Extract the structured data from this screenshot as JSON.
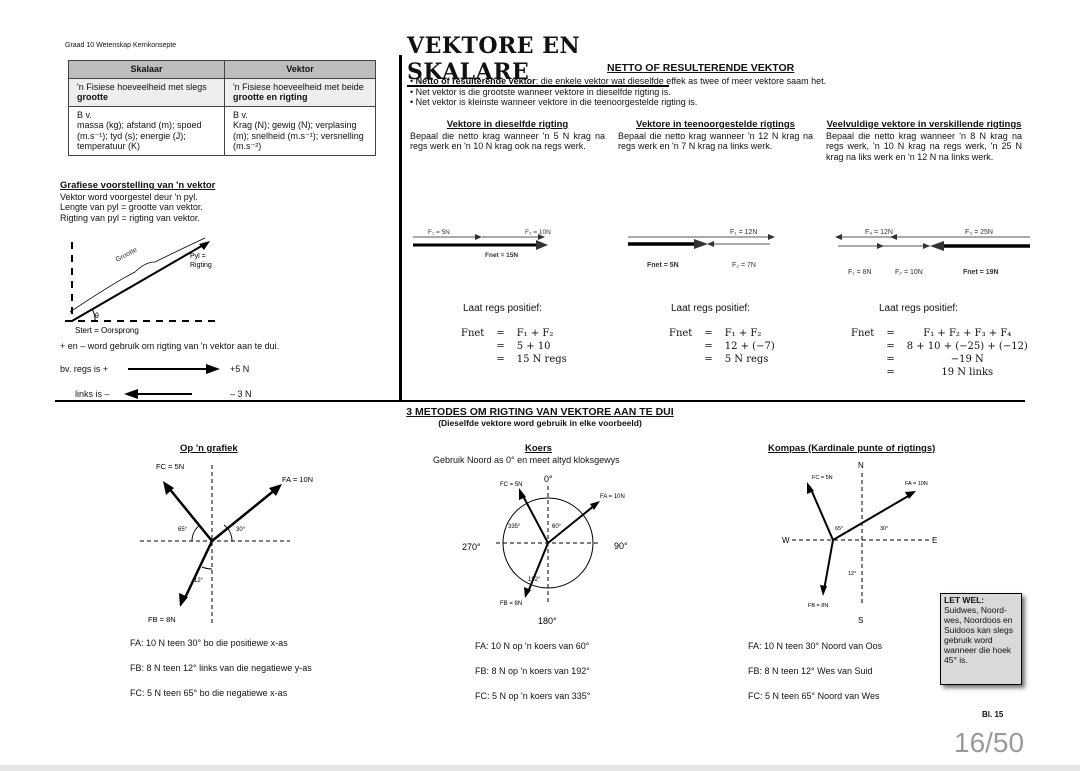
{
  "header": "Graad 10 Wetenskap Kernkonsepte",
  "title": "VEKTORE EN SKALARE",
  "table": {
    "headers": [
      "Skalaar",
      "Vektor"
    ],
    "row1": [
      "'n Fisiese hoeveelheid met slegs ",
      "grootte",
      "'n Fisiese hoeveelheid met beide ",
      "grootte en rigting"
    ],
    "row2_label": "B v.",
    "row2": [
      "massa (kg); afstand (m); spoed (m.s⁻¹); tyd (s); energie (J); temperatuur (K)",
      "Krag (N); gewig (N); verplasing (m); snelheid (m.s⁻¹); versnelling (m.s⁻²)"
    ]
  },
  "graphic": {
    "heading": "Grafiese voorstelling van 'n vektor",
    "lines": [
      "Vektor word voorgestel deur 'n pyl.",
      "Lengte van pyl = grootte van vektor.",
      "Rigting van pyl = rigting van vektor."
    ],
    "grootte": "Grootte",
    "pyl": "Pyl =",
    "rigting": "Rigting",
    "theta": "θ",
    "stert": "Stert = Oorsprong",
    "sign_note": "+ en – word gebruik om rigting van 'n vektor aan te dui.",
    "right_label": "bv. regs is +",
    "right_value": "+5 N",
    "left_label": "links is –",
    "left_value": "– 3 N"
  },
  "netto": {
    "heading": "NETTO OF RESULTERENDE VEKTOR",
    "b1_bold": "Netto of resulterende vektor",
    "b1": ": die enkele vektor wat dieselfde effek as twee of meer vektore saam het.",
    "b2": "Net vektor is die grootste wanneer vektore in dieselfde rigting is.",
    "b3": "Net vektor is kleinste wanneer vektore in die teenoorgestelde rigting is.",
    "cols": [
      {
        "heading": "Vektore in dieselfde rigting",
        "text": "Bepaal die netto krag wanneer 'n 5 N krag na regs werk en 'n 10 N krag ook na regs werk.",
        "labels": [
          "F₁ = 5N",
          "F₂ = 10N",
          "Fnet = 15N"
        ],
        "laat": "Laat regs positief:",
        "eq": [
          [
            "Fnet",
            "=",
            "F₁ + F₂"
          ],
          [
            "",
            "=",
            "5 + 10"
          ],
          [
            "",
            "=",
            "15 N regs"
          ]
        ]
      },
      {
        "heading": "Vektore in teenoorgestelde rigtings",
        "text": "Bepaal die netto krag wanneer 'n 12 N krag na regs werk en 'n 7 N krag na links werk.",
        "labels": [
          "F₁ = 12N",
          "Fnet = 5N",
          "F₂ = 7N"
        ],
        "laat": "Laat regs positief:",
        "eq": [
          [
            "Fnet",
            "=",
            "F₁ + F₂"
          ],
          [
            "",
            "=",
            "12 + (−7)"
          ],
          [
            "",
            "=",
            "5 N regs"
          ]
        ]
      },
      {
        "heading": "Veelvuldige vektore in verskillende rigtings",
        "text": "Bepaal die netto krag wanneer 'n 8 N krag na regs werk, 'n 10 N krag na regs werk, 'n 25 N krag na liks werk en 'n 12 N na links werk.",
        "labels": [
          "F₄ = 12N",
          "F₃ = 25N",
          "F₁ = 8N",
          "F₂ = 10N",
          "Fnet = 19N"
        ],
        "laat": "Laat regs positief:",
        "eq": [
          [
            "Fnet",
            "=",
            "F₁ + F₂ + F₃ + F₄"
          ],
          [
            "",
            "=",
            "8 + 10 + (−25) + (−12)"
          ],
          [
            "",
            "=",
            "−19 N"
          ],
          [
            "",
            "=",
            "19 N links"
          ]
        ]
      }
    ]
  },
  "methods": {
    "heading": "3 METODES OM RIGTING VAN VEKTORE AAN TE DUI",
    "sub": "(Dieselfde vektore word gebruik in elke voorbeeld)",
    "graph": {
      "heading": "Op 'n grafiek",
      "fc": "FC = 5N",
      "fa": "FA = 10N",
      "fb": "FB = 8N",
      "a1": "65°",
      "a2": "30°",
      "a3": "12°",
      "desc": [
        "FA: 10 N teen 30° bo die positiewe x-as",
        "FB: 8 N teen 12° links van die negatiewe y-as",
        "FC: 5 N teen 65° bo die negatiewe x-as"
      ]
    },
    "koers": {
      "heading": "Koers",
      "sub": "Gebruik Noord as 0° en meet altyd kloksgewys",
      "d0": "0°",
      "d90": "90°",
      "d180": "180°",
      "d270": "270°",
      "fc": "FC = 5N",
      "fa": "FA = 10N",
      "fb": "FB = 8N",
      "a1": "335°",
      "a2": "60°",
      "a3": "192°",
      "desc": [
        "FA: 10 N op 'n koers van 60°",
        "FB: 8 N op 'n koers van 192°",
        "FC: 5 N op 'n koers van 335°"
      ]
    },
    "kompas": {
      "heading": "Kompas (Kardinale punte of rigtings)",
      "n": "N",
      "s": "S",
      "e": "E",
      "w": "W",
      "fc": "FC = 5N",
      "fa": "FA = 10N",
      "fb": "FB = 8N",
      "a1": "65°",
      "a2": "30°",
      "a3": "12°",
      "desc": [
        "FA: 10 N teen 30° Noord van Oos",
        "FB: 8 N teen 12° Wes van Suid",
        "FC: 5 N teen 65° Noord van Wes"
      ]
    }
  },
  "note": {
    "title": "LET WEL:",
    "text": "Suidwes, Noord-wes, Noordoos en Suidoos kan slegs gebruik word wanneer die hoek 45° is."
  },
  "page_label": "Bl. 15",
  "page_counter": "16/50"
}
